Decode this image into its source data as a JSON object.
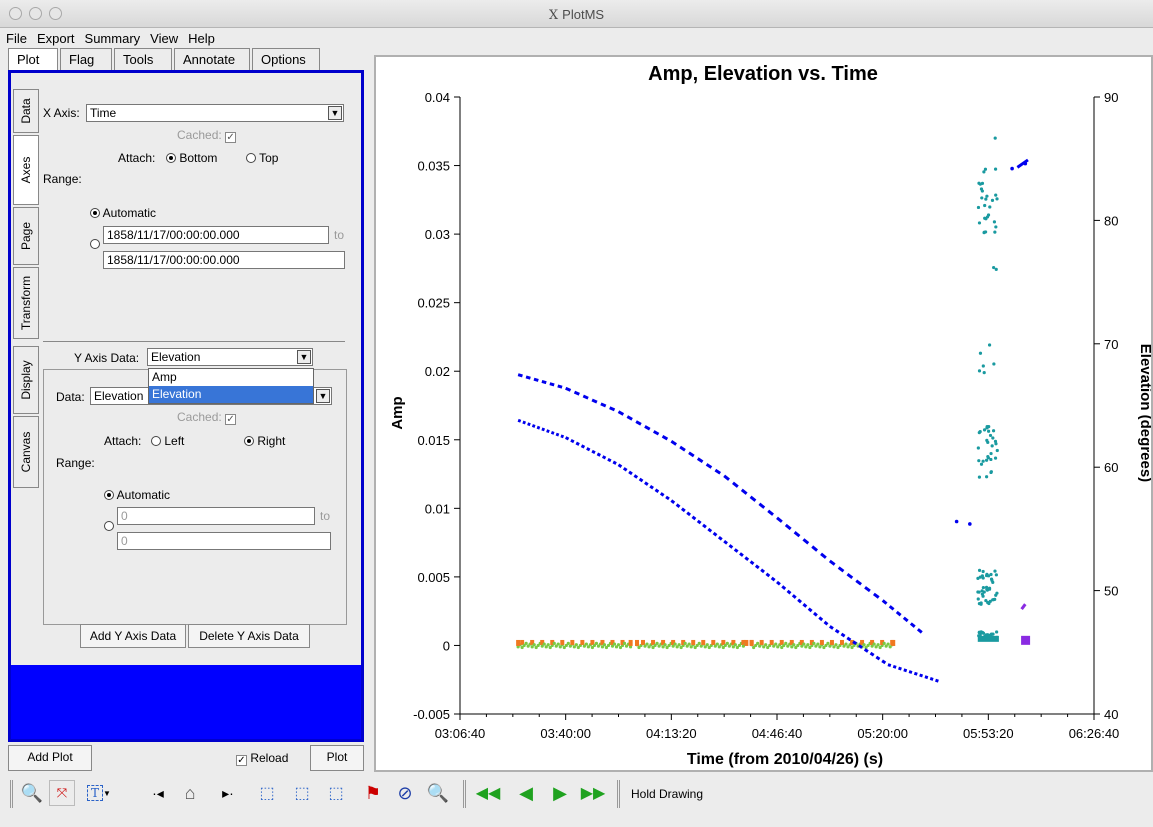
{
  "window": {
    "title": "PlotMS"
  },
  "menu": [
    "File",
    "Export",
    "Summary",
    "View",
    "Help"
  ],
  "tabs": [
    "Plot",
    "Flag",
    "Tools",
    "Annotate",
    "Options"
  ],
  "side_tabs": [
    "Data",
    "Axes",
    "Page",
    "Transform",
    "Display",
    "Canvas"
  ],
  "xaxis": {
    "label": "X Axis:",
    "value": "Time",
    "cached_label": "Cached:",
    "attach_label": "Attach:",
    "bottom": "Bottom",
    "top": "Top",
    "range_label": "Range:",
    "automatic": "Automatic",
    "range_from": "1858/11/17/00:00:00.000",
    "to": "to",
    "range_to": "1858/11/17/00:00:00.000"
  },
  "yaxis": {
    "data_label": "Y Axis Data:",
    "data_value": "Elevation",
    "options": [
      "Amp",
      "Elevation"
    ],
    "sub_data_label": "Data:",
    "sub_data_value": "Elevation",
    "cached_label": "Cached:",
    "attach_label": "Attach:",
    "left": "Left",
    "right": "Right",
    "range_label": "Range:",
    "automatic": "Automatic",
    "range_from": "0",
    "to": "to",
    "range_to": "0",
    "add_button": "Add Y Axis Data",
    "delete_button": "Delete Y Axis Data"
  },
  "bottom": {
    "add_plot": "Add Plot",
    "reload": "Reload",
    "plot": "Plot"
  },
  "toolbar": {
    "hold_drawing": "Hold Drawing"
  },
  "chart_data": {
    "type": "scatter",
    "title": "Amp, Elevation vs. Time",
    "xlabel": "Time (from 2010/04/26) (s)",
    "ylabel": "Amp",
    "y2label": "Elevation (degrees)",
    "x_ticks": [
      "03:06:40",
      "03:40:00",
      "04:13:20",
      "04:46:40",
      "05:20:00",
      "05:53:20",
      "06:26:40"
    ],
    "y_ticks": [
      "-0.005",
      "0",
      "0.005",
      "0.01",
      "0.015",
      "0.02",
      "0.025",
      "0.03",
      "0.035",
      "0.04"
    ],
    "y2_ticks": [
      "40",
      "50",
      "60",
      "70",
      "80",
      "90"
    ],
    "xlim_seconds": [
      11200,
      23200
    ],
    "ylim": [
      -0.005,
      0.04
    ],
    "y2lim": [
      40,
      90
    ],
    "colors": {
      "elevation": "#0000ee",
      "amp_cyan": "#1a9aa0",
      "amp_green": "#7ac943",
      "amp_orange": "#f07820",
      "purple": "#8a2be2"
    },
    "series": [
      {
        "axis": "right",
        "points": [
          [
            12300,
            67.5
          ],
          [
            13200,
            66.4
          ],
          [
            14200,
            64.5
          ],
          [
            15200,
            62.1
          ],
          [
            16200,
            59.3
          ],
          [
            17200,
            55.9
          ],
          [
            18200,
            52.4
          ],
          [
            19200,
            49.2
          ],
          [
            20000,
            46.4
          ]
        ]
      },
      {
        "axis": "right",
        "points": [
          [
            12300,
            63.8
          ],
          [
            13200,
            62.4
          ],
          [
            14200,
            60.2
          ],
          [
            15200,
            57.3
          ],
          [
            16200,
            54.0
          ],
          [
            17200,
            50.7
          ],
          [
            18200,
            47.1
          ],
          [
            19300,
            44.0
          ],
          [
            20300,
            42.6
          ]
        ]
      },
      {
        "axis": "right",
        "points": [
          [
            20600,
            55.6
          ],
          [
            20850,
            55.4
          ],
          [
            21650,
            84.2
          ],
          [
            21900,
            84.6
          ]
        ]
      }
    ]
  }
}
